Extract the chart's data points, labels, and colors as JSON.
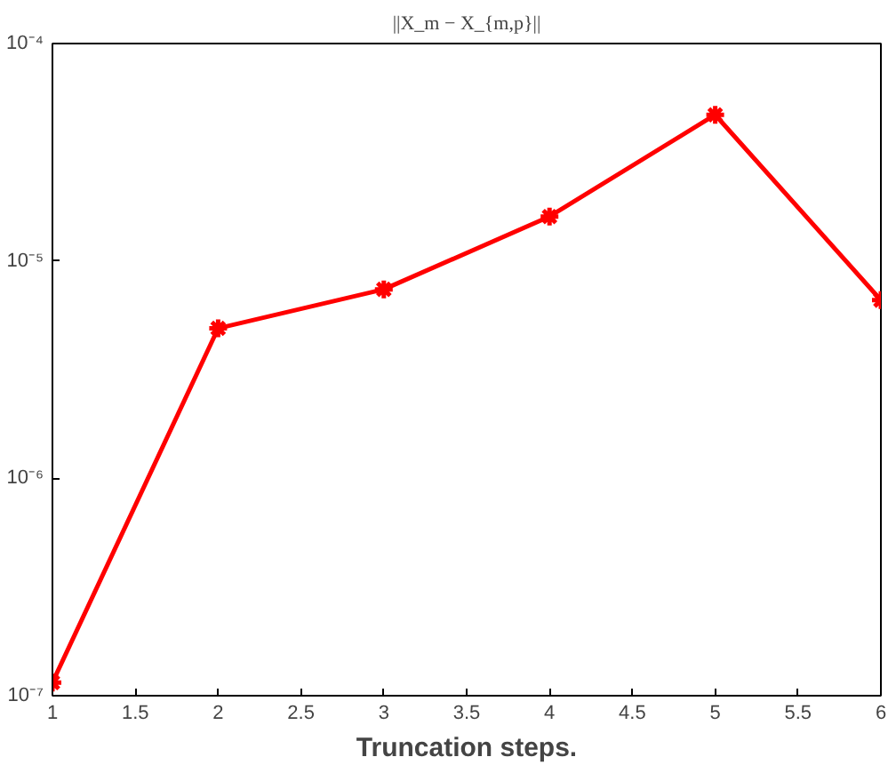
{
  "chart_data": {
    "type": "line",
    "title": "||X_m − X_{m,p}||",
    "xlabel": "Truncation steps.",
    "x": [
      1,
      2,
      3,
      4,
      5,
      6
    ],
    "series": [
      {
        "color": "#ff0000",
        "values": [
          1.15e-07,
          4.9e-06,
          7.4e-06,
          1.6e-05,
          4.7e-05,
          6.6e-06
        ]
      }
    ],
    "log": "y",
    "xlim": [
      1,
      6
    ],
    "ylim": [
      1e-07,
      0.0001
    ],
    "xticks": [
      1,
      1.5,
      2,
      2.5,
      3,
      3.5,
      4,
      4.5,
      5,
      5.5,
      6
    ],
    "yticks": [
      {
        "value": 1e-07,
        "label": "10⁻⁷"
      },
      {
        "value": 1e-06,
        "label": "10⁻⁶"
      },
      {
        "value": 1e-05,
        "label": "10⁻⁵"
      },
      {
        "value": 0.0001,
        "label": "10⁻⁴"
      }
    ],
    "grid": false,
    "marker": "cross",
    "line_style": "solid"
  }
}
